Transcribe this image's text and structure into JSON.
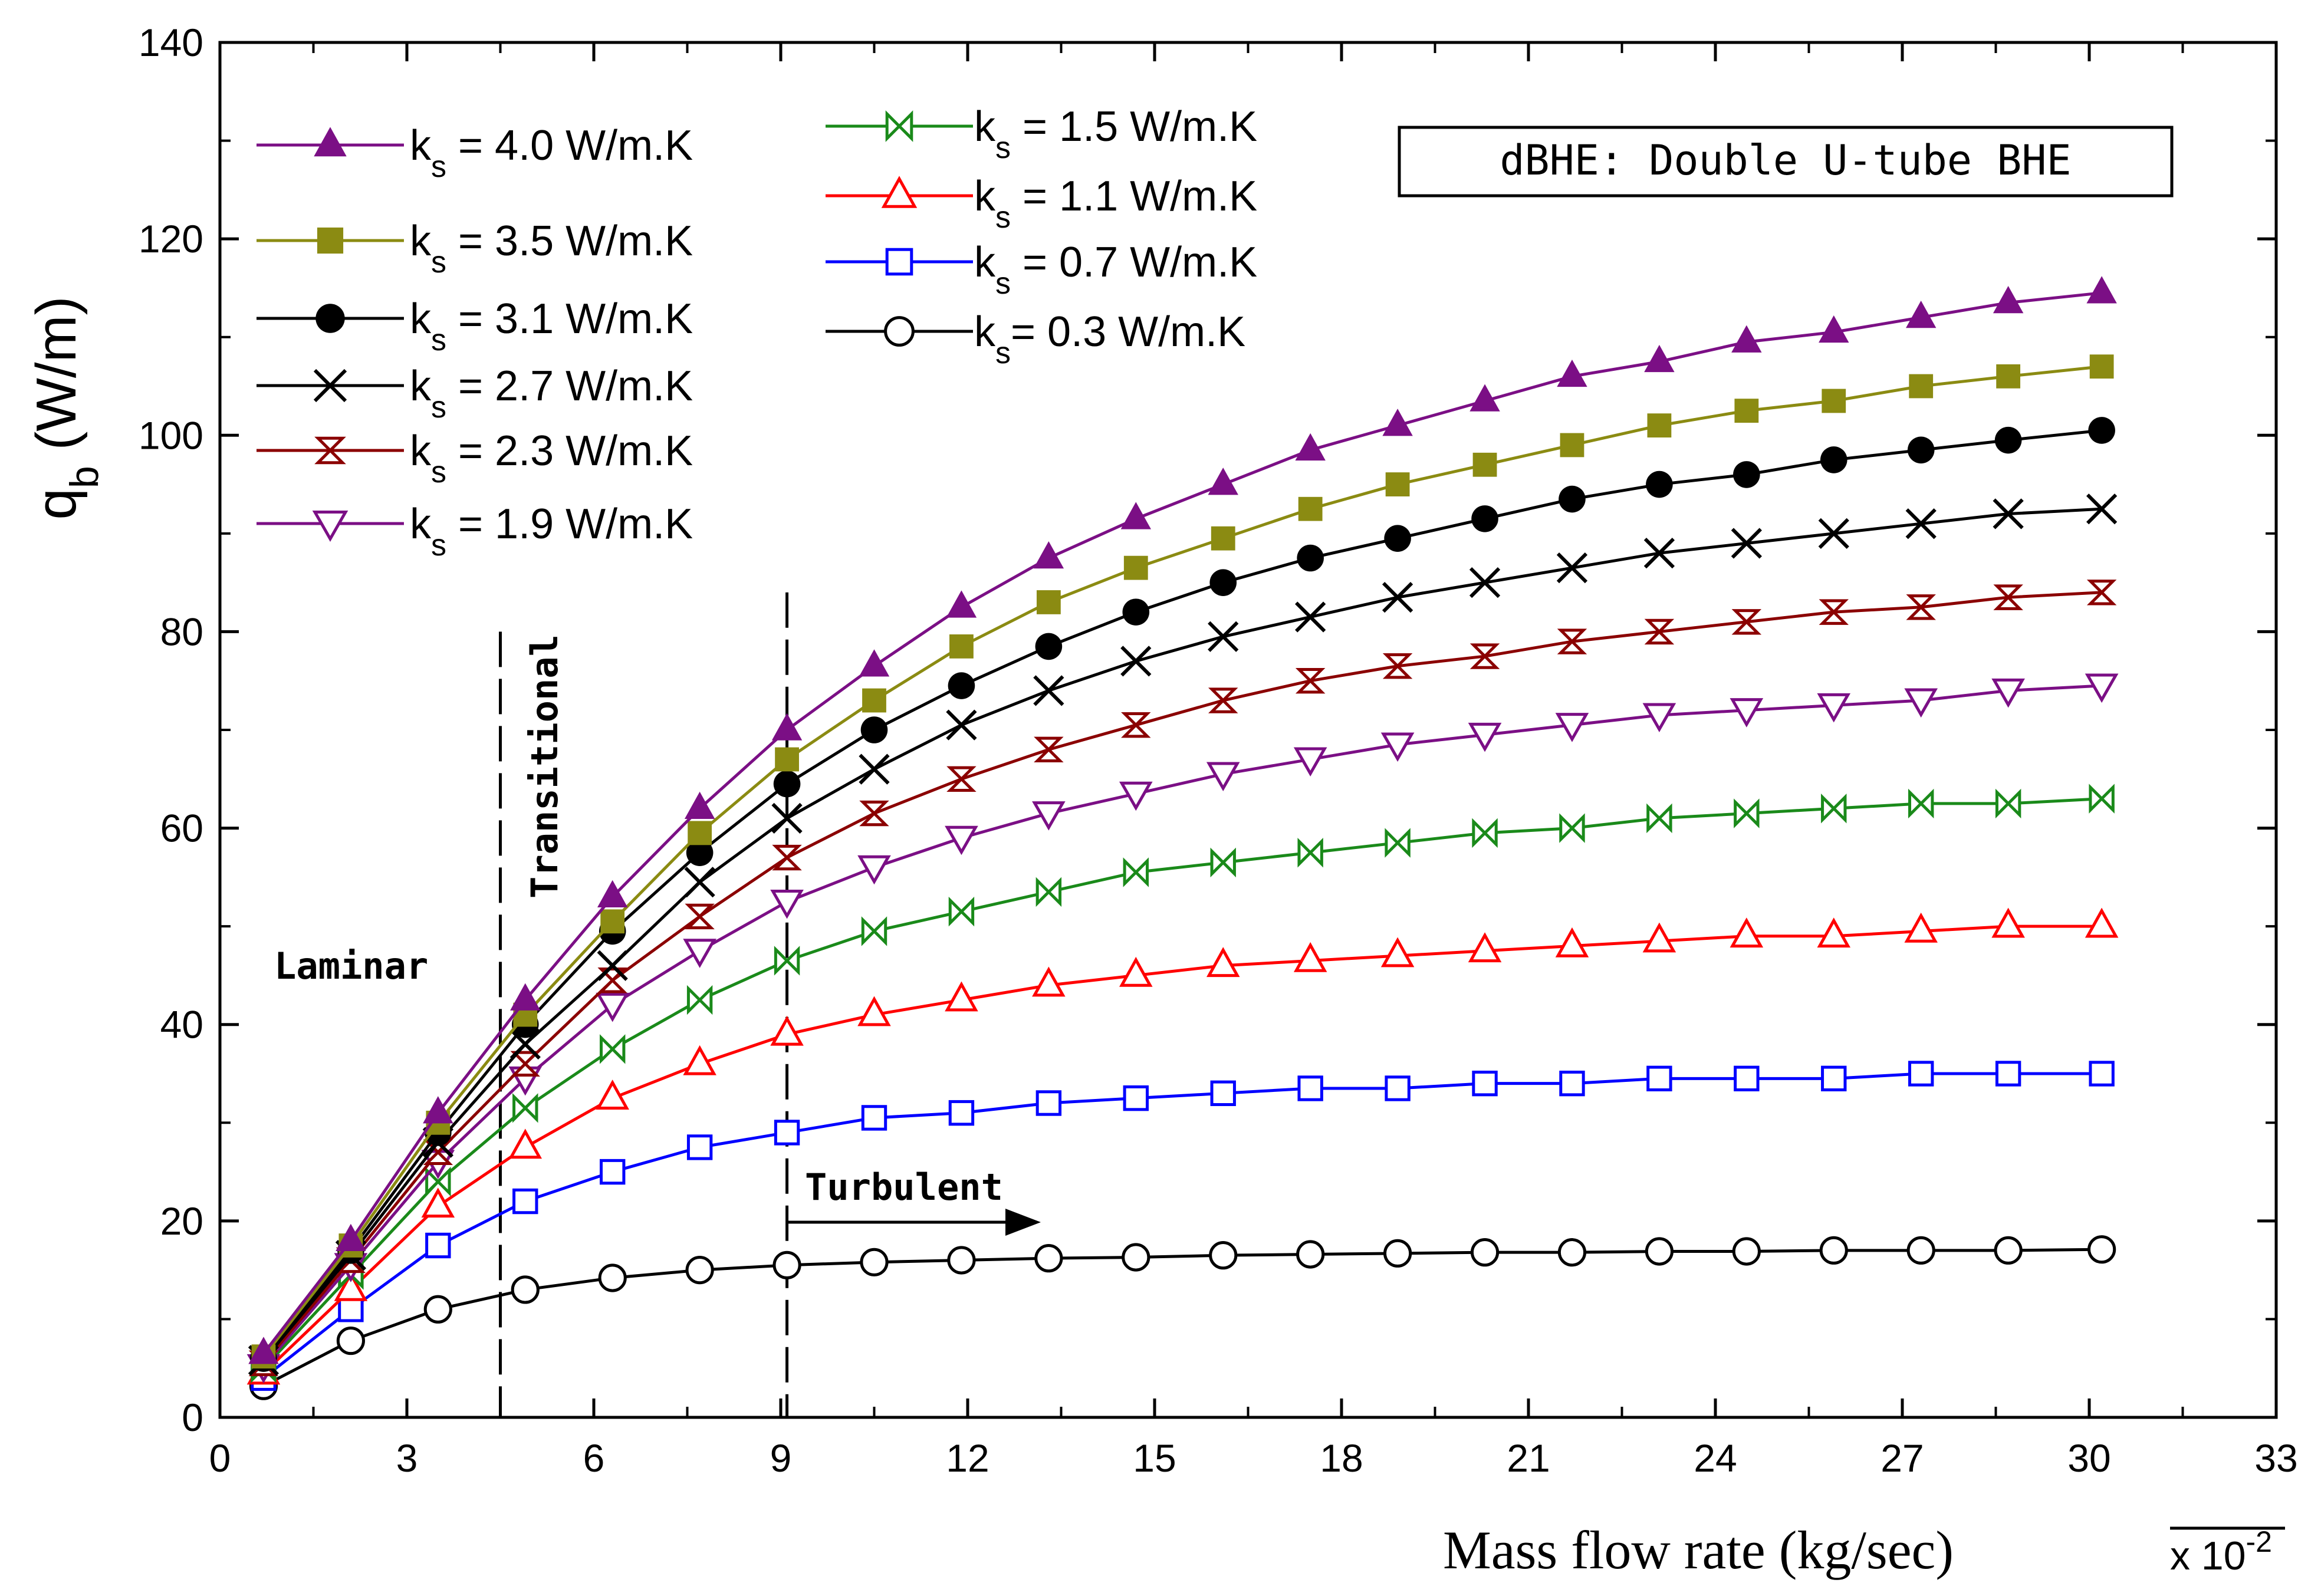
{
  "chart_data": {
    "type": "line",
    "ylabel_main": "q",
    "ylabel_sub": "b",
    "ylabel_unit": " (W/m)",
    "xlabel": "Mass flow rate (kg/sec)",
    "x_multiplier": "x 10",
    "x_multiplier_exp": "-2",
    "xlim": [
      0,
      33
    ],
    "ylim": [
      0,
      140
    ],
    "xticks": [
      0,
      3,
      6,
      9,
      12,
      15,
      18,
      21,
      24,
      27,
      30,
      33
    ],
    "yticks": [
      0,
      20,
      40,
      60,
      80,
      100,
      120,
      140
    ],
    "xtick_labels": [
      "0",
      "3",
      "6",
      "9",
      "12",
      "15",
      "18",
      "21",
      "24",
      "27",
      "30",
      "33"
    ],
    "ytick_labels": [
      "0",
      "20",
      "40",
      "60",
      "80",
      "100",
      "120",
      "140"
    ],
    "title_box": "dBHE: Double U-tube BHE",
    "annotations": {
      "laminar": "Laminar",
      "transitional": "Transitional",
      "turbulent": "Turbulent",
      "transition_start_x": 4.5,
      "turbulent_start_x": 9.1
    },
    "x": [
      0.7,
      2.1,
      3.5,
      4.9,
      6.3,
      7.7,
      9.1,
      10.5,
      11.9,
      13.3,
      14.7,
      16.1,
      17.5,
      18.9,
      20.3,
      21.7,
      23.1,
      24.5,
      25.9,
      27.3,
      28.7,
      30.2
    ],
    "series": [
      {
        "name": "4.0",
        "legend_prefix": "k",
        "legend_sub": "s",
        "legend_suffix": " = 4.0 W/m.K",
        "color": "#7b0f85",
        "marker": "triangle-filled",
        "values": [
          6.5,
          18,
          31,
          42.5,
          53,
          62,
          70,
          76.5,
          82.5,
          87.5,
          91.5,
          95,
          98.5,
          101,
          103.5,
          106,
          107.5,
          109.5,
          110.5,
          112,
          113.5,
          114.5
        ]
      },
      {
        "name": "3.5",
        "legend_prefix": "k",
        "legend_sub": "s",
        "legend_suffix": " = 3.5 W/m.K",
        "color": "#8b8b12",
        "marker": "square-filled",
        "values": [
          6.2,
          17.5,
          30,
          41,
          50.5,
          59.5,
          67,
          73,
          78.5,
          83,
          86.5,
          89.5,
          92.5,
          95,
          97,
          99,
          101,
          102.5,
          103.5,
          105,
          106,
          107
        ]
      },
      {
        "name": "3.1",
        "legend_prefix": "k",
        "legend_sub": "s",
        "legend_suffix": " = 3.1  W/m.K",
        "color": "#000000",
        "marker": "circle-filled",
        "values": [
          6,
          17,
          29,
          40,
          49.5,
          57.5,
          64.5,
          70,
          74.5,
          78.5,
          82,
          85,
          87.5,
          89.5,
          91.5,
          93.5,
          95,
          96,
          97.5,
          98.5,
          99.5,
          100.5
        ]
      },
      {
        "name": "2.7",
        "legend_prefix": "k",
        "legend_sub": "s",
        "legend_suffix": " = 2.7 W/m.K",
        "color": "#000000",
        "marker": "x",
        "values": [
          5.8,
          16.5,
          28,
          38,
          46,
          54.5,
          61,
          66,
          70.5,
          74,
          77,
          79.5,
          81.5,
          83.5,
          85,
          86.5,
          88,
          89,
          90,
          91,
          92,
          92.5
        ]
      },
      {
        "name": "2.3",
        "legend_prefix": "k",
        "legend_sub": "s",
        "legend_suffix": " = 2.3 W/m.K",
        "color": "#8b0000",
        "marker": "hourglass",
        "values": [
          5.5,
          16,
          27,
          36,
          44.5,
          51,
          57,
          61.5,
          65,
          68,
          70.5,
          73,
          75,
          76.5,
          77.5,
          79,
          80,
          81,
          82,
          82.5,
          83.5,
          84
        ]
      },
      {
        "name": "1.9",
        "legend_prefix": "k",
        "legend_sub": "s",
        "legend_suffix": " = 1.9 W/m.K",
        "color": "#7b0f85",
        "marker": "triangle-down-open",
        "values": [
          5.2,
          15.5,
          26,
          34.5,
          42,
          47.5,
          52.5,
          56,
          59,
          61.5,
          63.5,
          65.5,
          67,
          68.5,
          69.5,
          70.5,
          71.5,
          72,
          72.5,
          73,
          74,
          74.5
        ]
      },
      {
        "name": "1.5",
        "legend_prefix": "k",
        "legend_sub": "s",
        "legend_suffix": " = 1.5 W/m.K",
        "color": "#1a8a1a",
        "marker": "bowtie",
        "values": [
          5,
          14.5,
          24,
          31.5,
          37.5,
          42.5,
          46.5,
          49.5,
          51.5,
          53.5,
          55.5,
          56.5,
          57.5,
          58.5,
          59.5,
          60,
          61,
          61.5,
          62,
          62.5,
          62.5,
          63
        ]
      },
      {
        "name": "1.1",
        "legend_prefix": "k",
        "legend_sub": "s",
        "legend_suffix": " = 1.1 W/m.K",
        "color": "#ff0000",
        "marker": "triangle-open",
        "values": [
          4.5,
          13,
          21.5,
          27.5,
          32.5,
          36,
          39,
          41,
          42.5,
          44,
          45,
          46,
          46.5,
          47,
          47.5,
          48,
          48.5,
          49,
          49,
          49.5,
          50,
          50
        ]
      },
      {
        "name": "0.7",
        "legend_prefix": "k",
        "legend_sub": "s",
        "legend_suffix": " = 0.7 W/m.K",
        "color": "#0000ff",
        "marker": "square-open",
        "values": [
          4,
          11,
          17.5,
          22,
          25,
          27.5,
          29,
          30.5,
          31,
          32,
          32.5,
          33,
          33.5,
          33.5,
          34,
          34,
          34.5,
          34.5,
          34.5,
          35,
          35,
          35
        ]
      },
      {
        "name": "0.3",
        "legend_prefix": "k",
        "legend_sub": "s",
        "legend_suffix": "= 0.3 W/m.K",
        "color": "#000000",
        "marker": "circle-open",
        "values": [
          3.2,
          7.8,
          11,
          13,
          14.2,
          15,
          15.5,
          15.8,
          16,
          16.2,
          16.3,
          16.5,
          16.6,
          16.7,
          16.8,
          16.8,
          16.9,
          16.9,
          17,
          17,
          17,
          17.1
        ]
      }
    ]
  }
}
